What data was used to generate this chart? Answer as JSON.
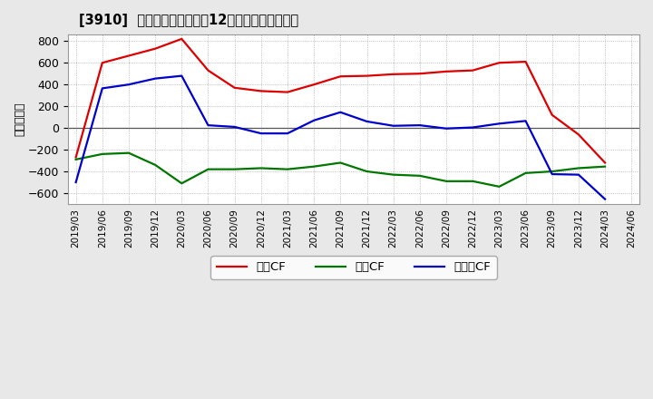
{
  "title": "[3910]  キャッシュフローの12か月移動合計の推移",
  "ylabel": "（百万円）",
  "background_color": "#e8e8e8",
  "plot_background": "#ffffff",
  "grid_color": "#aaaaaa",
  "xlabels": [
    "2019/03",
    "2019/06",
    "2019/09",
    "2019/12",
    "2020/03",
    "2020/06",
    "2020/09",
    "2020/12",
    "2021/03",
    "2021/06",
    "2021/09",
    "2021/12",
    "2022/03",
    "2022/06",
    "2022/09",
    "2022/12",
    "2023/03",
    "2023/06",
    "2023/09",
    "2023/12",
    "2024/03",
    "2024/06"
  ],
  "operating_cf": [
    -270,
    600,
    665,
    730,
    820,
    530,
    370,
    340,
    330,
    400,
    475,
    480,
    495,
    500,
    520,
    530,
    600,
    610,
    120,
    -60,
    -320,
    null
  ],
  "investing_cf": [
    -290,
    -240,
    -230,
    -340,
    -510,
    -380,
    -380,
    -370,
    -380,
    -355,
    -320,
    -400,
    -430,
    -440,
    -490,
    -490,
    -540,
    -415,
    -400,
    -370,
    -355,
    null
  ],
  "free_cf": [
    -500,
    365,
    400,
    455,
    480,
    25,
    10,
    -50,
    -50,
    70,
    145,
    60,
    20,
    25,
    -5,
    5,
    40,
    65,
    -425,
    -430,
    -655,
    null
  ],
  "ylim": [
    -700,
    860
  ],
  "yticks": [
    -600,
    -400,
    -200,
    0,
    200,
    400,
    600,
    800
  ],
  "legend_labels": [
    "営業CF",
    "投資CF",
    "フリーCF"
  ],
  "line_colors": [
    "#dd0000",
    "#007700",
    "#0000cc"
  ],
  "line_width": 1.6
}
